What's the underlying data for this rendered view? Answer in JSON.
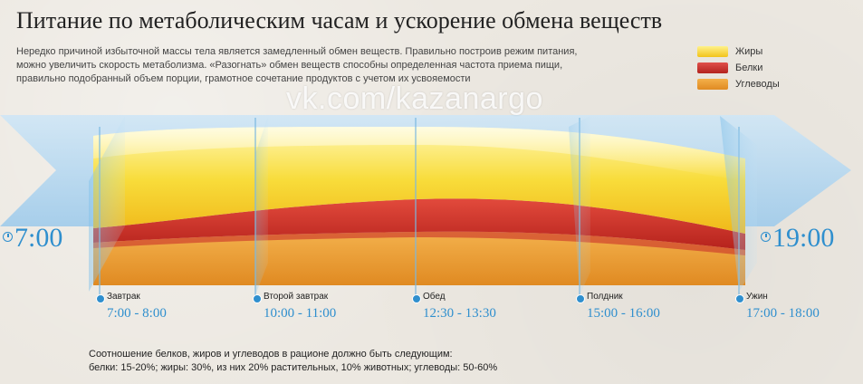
{
  "title": "Питание по метаболическим часам и ускорение обмена веществ",
  "intro": [
    "Нередко причиной избыточной массы тела является замедленный обмен веществ. Правильно построив режим питания,",
    "можно увеличить скорость метаболизма. «Разогнать» обмен веществ способны определенная частота приема пищи,",
    "правильно подобранный объем порции, грамотное сочетание продуктов с учетом их усвояемости"
  ],
  "watermark": "vk.com/kazanargo",
  "legend": [
    {
      "label": "Жиры",
      "color": "#f7d11f"
    },
    {
      "label": "Белки",
      "color": "#c9302a"
    },
    {
      "label": "Углеводы",
      "color": "#e8952b"
    }
  ],
  "start_time": "7:00",
  "end_time": "19:00",
  "meals": [
    {
      "name": "Завтрак",
      "time": "7:00 - 8:00"
    },
    {
      "name": "Второй завтрак",
      "time": "10:00 - 11:00"
    },
    {
      "name": "Обед",
      "time": "12:30 - 13:30"
    },
    {
      "name": "Полдник",
      "time": "15:00 - 16:00"
    },
    {
      "name": "Ужин",
      "time": "17:00 - 18:00"
    }
  ],
  "footnote": [
    "Соотношение белков, жиров и углеводов в рационе должно быть следующим:",
    "белки: 15-20%; жиры: 30%, из них 20% растительных, 10% животных; углеводы: 50-60%"
  ],
  "colors": {
    "fat": "#f7d11f",
    "protein": "#c9302a",
    "carbs": "#e8952b",
    "accent": "#2f8fce"
  }
}
